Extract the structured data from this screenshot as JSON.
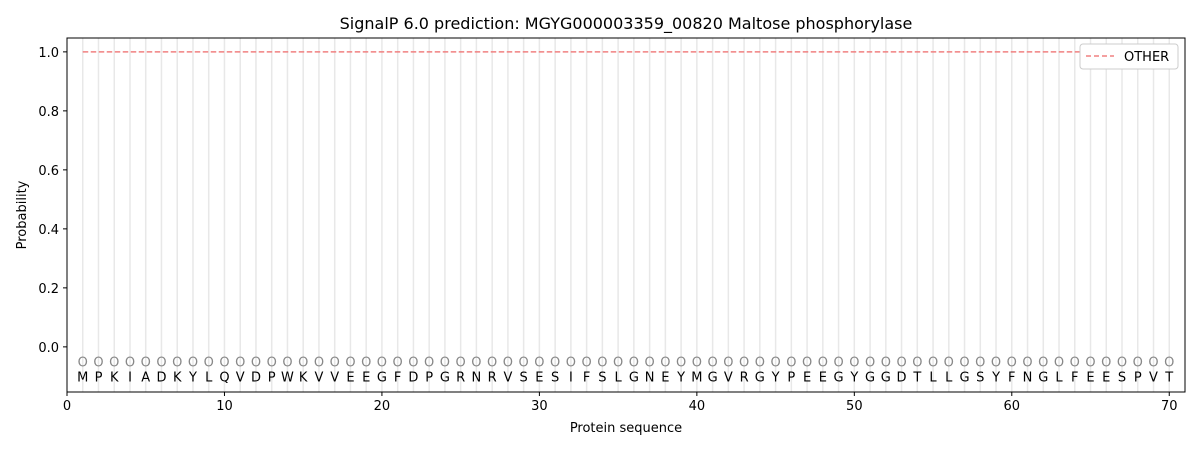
{
  "chart_data": {
    "type": "line",
    "title": "SignalP 6.0 prediction: MGYG000003359_00820 Maltose phosphorylase",
    "xlabel": "Protein sequence",
    "ylabel": "Probability",
    "xlim": [
      0,
      71
    ],
    "ylim": [
      -0.153,
      1.047
    ],
    "xticks": [
      0,
      10,
      20,
      30,
      40,
      50,
      60,
      70
    ],
    "yticks": [
      0.0,
      0.2,
      0.4,
      0.6,
      0.8,
      1.0
    ],
    "ytick_labels": [
      "0.0",
      "0.2",
      "0.4",
      "0.6",
      "0.8",
      "1.0"
    ],
    "grid": "vertical lines at each residue",
    "legend": "top-right",
    "sequence": [
      "M",
      "P",
      "K",
      "I",
      "A",
      "D",
      "K",
      "Y",
      "L",
      "Q",
      "V",
      "D",
      "P",
      "W",
      "K",
      "V",
      "V",
      "E",
      "E",
      "G",
      "F",
      "D",
      "P",
      "G",
      "R",
      "N",
      "R",
      "V",
      "S",
      "E",
      "S",
      "I",
      "F",
      "S",
      "L",
      "G",
      "N",
      "E",
      "Y",
      "M",
      "G",
      "V",
      "R",
      "G",
      "Y",
      "P",
      "E",
      "E",
      "G",
      "Y",
      "G",
      "G",
      "D",
      "T",
      "L",
      "L",
      "G",
      "S",
      "Y",
      "F",
      "N",
      "G",
      "L",
      "F",
      "E",
      "E",
      "S",
      "P",
      "V",
      "T"
    ],
    "predicted_label": "O",
    "series": [
      {
        "name": "OTHER",
        "color": "#f08080",
        "style": "dashed",
        "x_range": [
          1,
          70
        ],
        "value": 1.0
      }
    ]
  }
}
